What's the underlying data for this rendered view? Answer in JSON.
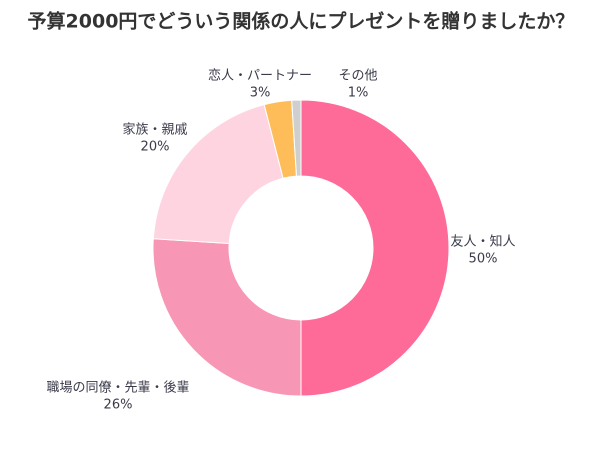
{
  "chart_data": {
    "type": "donut",
    "title": "予算2000円でどういう関係の人にプレゼントを贈りましたか？",
    "categories": [
      "友人・知人",
      "職場の同僚・先輩・後輩",
      "家族・親戚",
      "恋人・パートナー",
      "その他"
    ],
    "values": [
      50,
      26,
      20,
      3,
      1
    ],
    "value_labels": [
      "50%",
      "26%",
      "20%",
      "3%",
      "1%"
    ],
    "colors": [
      "#ff6b98",
      "#f797b5",
      "#ffd4e1",
      "#ffbd5a",
      "#cfcfcf"
    ]
  }
}
